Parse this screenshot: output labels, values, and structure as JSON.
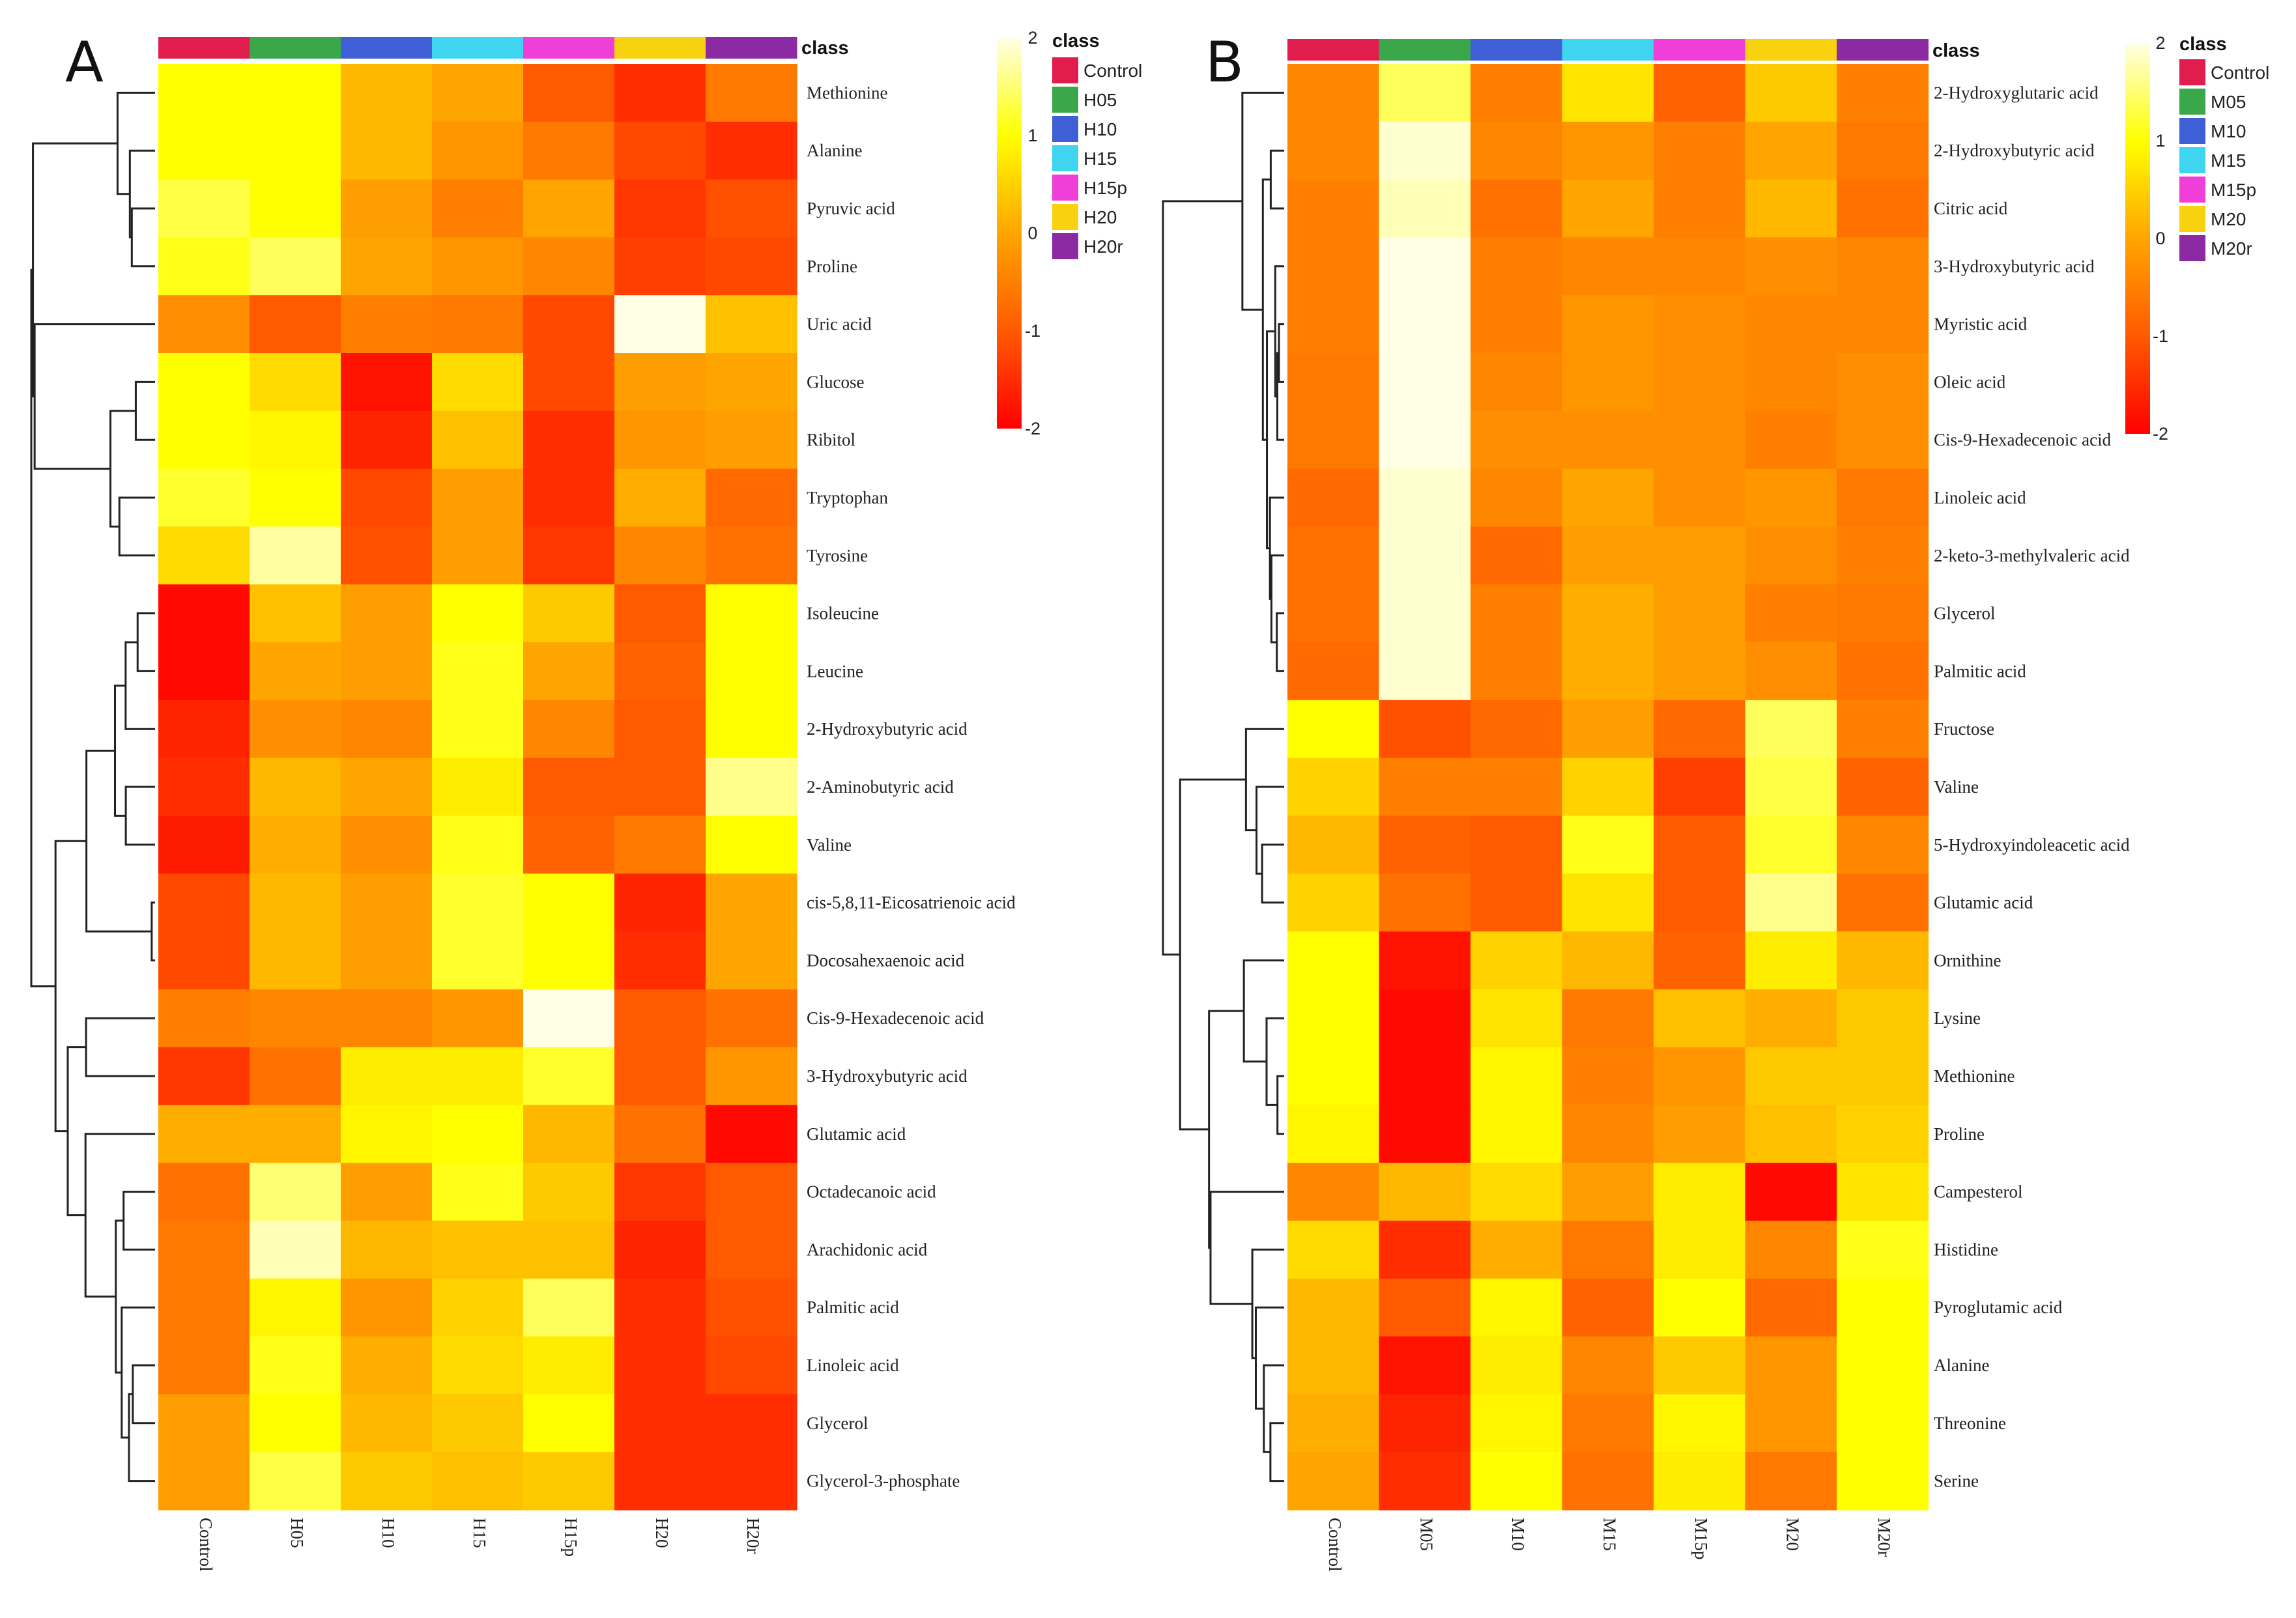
{
  "chart_data": [
    {
      "type": "heatmap",
      "panel": "A",
      "columns": [
        "Control",
        "H05",
        "H10",
        "H15",
        "H15p",
        "H20",
        "H20r"
      ],
      "column_colors": [
        "#e01d4c",
        "#3aa84a",
        "#3f5fd6",
        "#3fd4f0",
        "#f03ed8",
        "#f8d20e",
        "#8c2aa4"
      ],
      "legend_title": "class",
      "color_scale": {
        "min": -2,
        "max": 2,
        "ticks": [
          2,
          1,
          0,
          -1,
          -2
        ]
      },
      "rows": [
        "Methionine",
        "Alanine",
        "Pyruvic acid",
        "Proline",
        "Uric acid",
        "Glucose",
        "Ribitol",
        "Tryptophan",
        "Tyrosine",
        "Isoleucine",
        "Leucine",
        "2-Hydroxybutyric acid",
        "2-Aminobutyric acid",
        "Valine",
        "cis-5,8,11-Eicosatrienoic acid",
        "Docosahexaenoic acid",
        "Cis-9-Hexadecenoic acid",
        "3-Hydroxybutyric acid",
        "Glutamic acid",
        "Octadecanoic acid",
        "Arachidonic acid",
        "Palmitic acid",
        "Linoleic acid",
        "Glycerol",
        "Glycerol-3-phosphate"
      ],
      "values": [
        [
          1.0,
          1.0,
          0.2,
          0.0,
          -1.0,
          -1.5,
          -0.6
        ],
        [
          1.0,
          1.0,
          0.2,
          -0.2,
          -0.6,
          -1.2,
          -1.5
        ],
        [
          1.3,
          1.0,
          -0.1,
          -0.5,
          0.0,
          -1.4,
          -1.1
        ],
        [
          1.1,
          1.4,
          0.0,
          -0.2,
          -0.4,
          -1.3,
          -1.2
        ],
        [
          -0.3,
          -1.0,
          -0.5,
          -0.6,
          -1.2,
          2.0,
          0.3
        ],
        [
          1.0,
          0.6,
          -1.8,
          0.6,
          -1.2,
          -0.1,
          0.0
        ],
        [
          1.0,
          0.9,
          -1.6,
          0.3,
          -1.5,
          -0.2,
          -0.1
        ],
        [
          1.2,
          1.0,
          -1.2,
          -0.1,
          -1.5,
          0.1,
          -0.8
        ],
        [
          0.6,
          1.7,
          -1.1,
          -0.1,
          -1.4,
          -0.4,
          -0.7
        ],
        [
          -1.9,
          0.3,
          -0.1,
          1.0,
          0.4,
          -1.0,
          1.0
        ],
        [
          -1.9,
          0.0,
          -0.1,
          1.1,
          0.0,
          -0.9,
          1.0
        ],
        [
          -1.6,
          -0.3,
          -0.4,
          1.1,
          -0.4,
          -1.0,
          1.0
        ],
        [
          -1.5,
          0.2,
          0.0,
          0.8,
          -1.0,
          -1.0,
          1.6
        ],
        [
          -1.7,
          0.1,
          -0.3,
          1.1,
          -0.9,
          -0.6,
          1.0
        ],
        [
          -1.2,
          0.2,
          -0.1,
          1.2,
          1.0,
          -1.6,
          0.0
        ],
        [
          -1.2,
          0.2,
          -0.1,
          1.2,
          1.0,
          -1.5,
          0.0
        ],
        [
          -0.5,
          -0.4,
          -0.4,
          -0.2,
          2.0,
          -1.0,
          -0.7
        ],
        [
          -1.4,
          -0.7,
          0.8,
          0.8,
          1.2,
          -1.0,
          -0.2
        ],
        [
          0.1,
          0.1,
          0.9,
          1.0,
          0.2,
          -0.7,
          -1.9
        ],
        [
          -0.7,
          1.5,
          -0.1,
          1.1,
          0.4,
          -1.4,
          -1.0
        ],
        [
          -0.6,
          1.8,
          0.2,
          0.3,
          0.3,
          -1.6,
          -1.0
        ],
        [
          -0.6,
          0.9,
          -0.2,
          0.5,
          1.4,
          -1.5,
          -1.1
        ],
        [
          -0.6,
          1.1,
          0.1,
          0.6,
          0.8,
          -1.5,
          -1.2
        ],
        [
          -0.1,
          1.0,
          0.2,
          0.4,
          1.0,
          -1.5,
          -1.5
        ],
        [
          -0.1,
          1.3,
          0.4,
          0.3,
          0.4,
          -1.5,
          -1.5
        ]
      ]
    },
    {
      "type": "heatmap",
      "panel": "B",
      "columns": [
        "Control",
        "M05",
        "M10",
        "M15",
        "M15p",
        "M20",
        "M20r"
      ],
      "column_colors": [
        "#e01d4c",
        "#3aa84a",
        "#3f5fd6",
        "#3fd4f0",
        "#f03ed8",
        "#f8d20e",
        "#8c2aa4"
      ],
      "legend_title": "class",
      "color_scale": {
        "min": -2,
        "max": 2,
        "ticks": [
          2,
          1,
          0,
          -1,
          -2
        ]
      },
      "rows": [
        "2-Hydroxyglutaric acid",
        "2-Hydroxybutyric acid",
        "Citric acid",
        "3-Hydroxybutyric acid",
        "Myristic acid",
        "Oleic acid",
        "Cis-9-Hexadecenoic acid",
        "Linoleic acid",
        "2-keto-3-methylvaleric acid",
        "Glycerol",
        "Palmitic acid",
        "Fructose",
        "Valine",
        "5-Hydroxyindoleacetic acid",
        "Glutamic acid",
        "Ornithine",
        "Lysine",
        "Methionine",
        "Proline",
        "Campesterol",
        "Histidine",
        "Pyroglutamic acid",
        "Alanine",
        "Threonine",
        "Serine"
      ],
      "values": [
        [
          -0.4,
          1.4,
          -0.5,
          0.7,
          -0.9,
          0.4,
          -0.5
        ],
        [
          -0.4,
          1.9,
          -0.4,
          -0.2,
          -0.5,
          0.0,
          -0.6
        ],
        [
          -0.5,
          1.8,
          -0.7,
          0.0,
          -0.5,
          0.2,
          -0.7
        ],
        [
          -0.5,
          2.0,
          -0.5,
          -0.4,
          -0.4,
          -0.3,
          -0.4
        ],
        [
          -0.5,
          2.0,
          -0.5,
          -0.2,
          -0.3,
          -0.4,
          -0.4
        ],
        [
          -0.6,
          2.0,
          -0.4,
          -0.2,
          -0.3,
          -0.4,
          -0.3
        ],
        [
          -0.6,
          2.0,
          -0.3,
          -0.3,
          -0.3,
          -0.5,
          -0.3
        ],
        [
          -0.8,
          1.9,
          -0.4,
          0.0,
          -0.3,
          -0.2,
          -0.6
        ],
        [
          -0.7,
          1.9,
          -0.8,
          -0.1,
          -0.1,
          -0.3,
          -0.5
        ],
        [
          -0.7,
          1.9,
          -0.5,
          0.1,
          -0.1,
          -0.5,
          -0.6
        ],
        [
          -0.8,
          1.9,
          -0.5,
          0.1,
          -0.1,
          -0.3,
          -0.7
        ],
        [
          1.0,
          -1.1,
          -0.8,
          -0.1,
          -0.8,
          1.4,
          -0.5
        ],
        [
          0.5,
          -0.5,
          -0.5,
          0.5,
          -1.3,
          1.3,
          -0.9
        ],
        [
          0.2,
          -0.9,
          -1.0,
          1.1,
          -1.0,
          1.2,
          -0.4
        ],
        [
          0.5,
          -0.7,
          -1.0,
          0.7,
          -1.0,
          1.6,
          -0.7
        ],
        [
          1.0,
          -1.8,
          0.5,
          0.2,
          -0.9,
          0.8,
          0.2
        ],
        [
          1.0,
          -1.9,
          0.7,
          -0.6,
          0.3,
          0.1,
          0.4
        ],
        [
          1.0,
          -1.9,
          0.9,
          -0.5,
          -0.2,
          0.4,
          0.4
        ],
        [
          0.9,
          -1.9,
          0.9,
          -0.4,
          -0.1,
          0.3,
          0.5
        ],
        [
          -0.4,
          0.2,
          0.6,
          -0.1,
          0.8,
          -1.9,
          0.7
        ],
        [
          0.6,
          -1.5,
          0.1,
          -0.6,
          0.8,
          -0.4,
          1.1
        ],
        [
          0.2,
          -1.0,
          0.9,
          -0.9,
          1.0,
          -0.8,
          1.0
        ],
        [
          0.2,
          -1.8,
          0.8,
          -0.4,
          0.4,
          -0.2,
          1.0
        ],
        [
          0.1,
          -1.6,
          0.9,
          -0.6,
          0.9,
          -0.2,
          1.0
        ],
        [
          0.0,
          -1.5,
          1.0,
          -0.7,
          0.8,
          -0.6,
          1.0
        ]
      ]
    }
  ]
}
